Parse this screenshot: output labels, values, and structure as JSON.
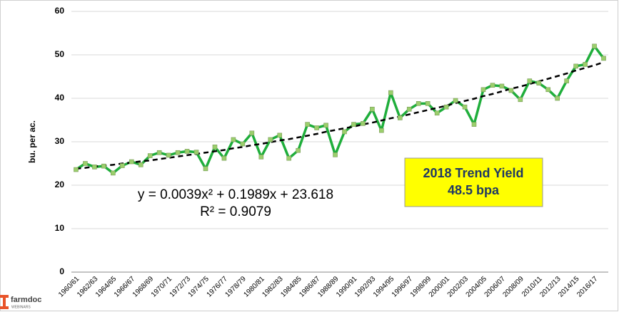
{
  "chart_data": {
    "type": "line",
    "y_label": "bu. per ac.",
    "categories": [
      "1960/61",
      null,
      "1962/63",
      null,
      "1964/65",
      null,
      "1966/67",
      null,
      "1968/69",
      null,
      "1970/71",
      null,
      "1972/73",
      null,
      "1974/75",
      null,
      "1976/77",
      null,
      "1978/79",
      null,
      "1980/81",
      null,
      "1982/83",
      null,
      "1984/85",
      null,
      "1986/87",
      null,
      "1988/89",
      null,
      "1990/91",
      null,
      "1992/93",
      null,
      "1994/95",
      null,
      "1996/97",
      null,
      "1998/99",
      null,
      "2000/01",
      null,
      "2002/03",
      null,
      "2004/05",
      null,
      "2006/07",
      null,
      "2008/09",
      null,
      "2010/11",
      null,
      "2012/13",
      null,
      "2014/15",
      null,
      "2016/17",
      null
    ],
    "values": [
      23.6,
      25.0,
      24.2,
      24.4,
      22.8,
      24.5,
      25.4,
      24.7,
      26.8,
      27.5,
      26.9,
      27.5,
      27.8,
      27.6,
      23.8,
      28.8,
      26.2,
      30.5,
      29.5,
      32.0,
      26.5,
      30.5,
      31.5,
      26.2,
      28.0,
      34.0,
      33.2,
      33.8,
      27.0,
      32.3,
      34.0,
      34.2,
      37.5,
      32.6,
      41.3,
      35.5,
      37.5,
      38.8,
      38.8,
      36.6,
      38.0,
      39.5,
      38.0,
      34.0,
      42.0,
      43.0,
      42.8,
      41.8,
      39.7,
      44.0,
      43.5,
      42.0,
      40.0,
      44.0,
      47.4,
      47.8,
      52.0,
      49.2
    ],
    "color": "#1fae3b",
    "marker_color": "#9bcf6c",
    "trendline": {
      "color": "#000000",
      "values": [
        23.8,
        24.0,
        24.3,
        24.5,
        24.7,
        25.0,
        25.2,
        25.5,
        25.7,
        26.0,
        26.3,
        26.6,
        26.9,
        27.2,
        27.5,
        27.8,
        28.1,
        28.5,
        28.8,
        29.2,
        29.5,
        29.9,
        30.3,
        30.6,
        31.0,
        31.4,
        31.8,
        32.3,
        32.7,
        33.1,
        33.5,
        34.0,
        34.4,
        34.9,
        35.4,
        35.8,
        36.3,
        36.8,
        37.3,
        37.8,
        38.3,
        38.9,
        39.4,
        39.9,
        40.5,
        41.0,
        41.6,
        42.2,
        42.7,
        43.3,
        43.9,
        44.5,
        45.1,
        45.7,
        46.4,
        47.0,
        47.6,
        48.3
      ]
    },
    "equation": "y = 0.0039x² + 0.1989x + 23.618",
    "r_squared": "R² = 0.9079",
    "callout": {
      "line1": "2018 Trend Yield",
      "line2": "48.5 bpa",
      "color": "#ffff00"
    },
    "ylim": [
      0,
      60
    ],
    "yticks": [
      0,
      10,
      20,
      30,
      40,
      50,
      60
    ],
    "grid": true
  },
  "logo": {
    "name": "farmdoc",
    "sub": "WEBINARS"
  }
}
